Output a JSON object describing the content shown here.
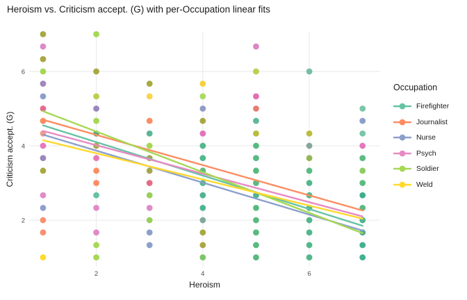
{
  "title": "Heroism vs. Criticism accept. (G) with per-Occupation linear fits",
  "axes": {
    "x_label": "Heroism",
    "y_label": "Criticism accept. (G)"
  },
  "legend": {
    "title": "Occupation",
    "items": [
      {
        "label": "Firefighter",
        "color": "#66C2A5"
      },
      {
        "label": "Journalist",
        "color": "#FC8D62"
      },
      {
        "label": "Nurse",
        "color": "#8DA0CB"
      },
      {
        "label": "Psych",
        "color": "#E78AC3"
      },
      {
        "label": "Soldier",
        "color": "#A6D854"
      },
      {
        "label": "Weld",
        "color": "#FFD92F"
      }
    ]
  },
  "chart_data": {
    "type": "scatter",
    "title": "Heroism vs. Criticism accept. (G) with per-Occupation linear fits",
    "xlabel": "Heroism",
    "ylabel": "Criticism accept. (G)",
    "xlim": [
      0.74,
      7.33
    ],
    "ylim": [
      0.75,
      7.08
    ],
    "x_ticks": [
      2,
      4,
      6
    ],
    "y_ticks": [
      2,
      4,
      6
    ],
    "grid": "major-only",
    "grid_color": "#EBEBEB",
    "tick_label_color": "#4D4D4D",
    "legend_position": "right",
    "point_radius": 4.4,
    "points": [
      [
        1,
        7.0,
        "#A9A943"
      ],
      [
        1,
        6.67,
        "#DC8BC7"
      ],
      [
        1,
        6.33,
        "#A9A943"
      ],
      [
        1,
        6.0,
        "#A6D854"
      ],
      [
        1,
        5.67,
        "#9F87BF"
      ],
      [
        1,
        5.33,
        "#8DA0CB"
      ],
      [
        1,
        5.0,
        "#E56B8C"
      ],
      [
        1,
        4.67,
        "#FC8D62"
      ],
      [
        1,
        4.33,
        "#F59C83"
      ],
      [
        1,
        4.0,
        "#E778BA"
      ],
      [
        1,
        3.67,
        "#9C86BE"
      ],
      [
        1,
        3.33,
        "#A9A943"
      ],
      [
        1,
        2.67,
        "#E08BC9"
      ],
      [
        1,
        2.33,
        "#8DA0CB"
      ],
      [
        1,
        2.0,
        "#F89071"
      ],
      [
        1,
        1.67,
        "#F89071"
      ],
      [
        1,
        1.0,
        "#FFD92F"
      ],
      [
        2,
        7.0,
        "#A6D854"
      ],
      [
        2,
        6.0,
        "#A9A943"
      ],
      [
        2,
        5.33,
        "#BCCF4E"
      ],
      [
        2,
        5.0,
        "#9C86BE"
      ],
      [
        2,
        4.67,
        "#A6D854"
      ],
      [
        2,
        4.33,
        "#4FA77E"
      ],
      [
        2,
        4.0,
        "#A9A943"
      ],
      [
        2,
        3.67,
        "#E778BA"
      ],
      [
        2,
        3.33,
        "#FC8D62"
      ],
      [
        2,
        3.0,
        "#FC8D62"
      ],
      [
        2,
        2.67,
        "#66C2A5"
      ],
      [
        2,
        2.33,
        "#E08BC9"
      ],
      [
        2,
        1.67,
        "#E08BC9"
      ],
      [
        2,
        1.33,
        "#A6D854"
      ],
      [
        2,
        1.0,
        "#A6D854"
      ],
      [
        3,
        5.67,
        "#A9A943"
      ],
      [
        3,
        5.33,
        "#F7D54D"
      ],
      [
        3,
        4.67,
        "#FC8D62"
      ],
      [
        3,
        4.33,
        "#5BB597"
      ],
      [
        3,
        4.0,
        "#A6D854"
      ],
      [
        3,
        3.67,
        "#A3A64F"
      ],
      [
        3,
        3.33,
        "#A3A64F"
      ],
      [
        3,
        3.0,
        "#E56B84"
      ],
      [
        3,
        2.67,
        "#98D05C"
      ],
      [
        3,
        2.33,
        "#E08BC9"
      ],
      [
        3,
        2.0,
        "#98D05C"
      ],
      [
        3,
        1.67,
        "#8DA0CB"
      ],
      [
        3,
        1.33,
        "#8DA0CB"
      ],
      [
        4,
        5.67,
        "#F6D144"
      ],
      [
        4,
        5.33,
        "#ABDA62"
      ],
      [
        4,
        5.0,
        "#939BC8"
      ],
      [
        4,
        4.67,
        "#A9A943"
      ],
      [
        4,
        4.33,
        "#E175BC"
      ],
      [
        4,
        4.0,
        "#52B88B"
      ],
      [
        4,
        3.67,
        "#52B88B"
      ],
      [
        4,
        3.33,
        "#5FBB7E"
      ],
      [
        4,
        3.0,
        "#52B88B"
      ],
      [
        4,
        2.67,
        "#50B491"
      ],
      [
        4,
        2.33,
        "#50B491"
      ],
      [
        4,
        2.0,
        "#7FA99E"
      ],
      [
        4,
        1.67,
        "#A9A943"
      ],
      [
        4,
        1.33,
        "#A9A943"
      ],
      [
        4,
        1.0,
        "#7CC668"
      ],
      [
        5,
        6.67,
        "#DC87C4"
      ],
      [
        5,
        6.0,
        "#BCCF4E"
      ],
      [
        5,
        5.33,
        "#E36FB2"
      ],
      [
        5,
        5.0,
        "#E97B72"
      ],
      [
        5,
        4.67,
        "#5FB999"
      ],
      [
        5,
        4.33,
        "#B9BD3C"
      ],
      [
        5,
        4.0,
        "#59BA80"
      ],
      [
        5,
        3.67,
        "#59BA80"
      ],
      [
        5,
        3.33,
        "#59BA80"
      ],
      [
        5,
        3.0,
        "#59BA80"
      ],
      [
        5,
        2.67,
        "#4FB492"
      ],
      [
        5,
        2.33,
        "#59BA80"
      ],
      [
        5,
        2.0,
        "#59BA80"
      ],
      [
        5,
        1.67,
        "#59BA80"
      ],
      [
        5,
        1.33,
        "#59BA80"
      ],
      [
        5,
        1.0,
        "#59BA80"
      ],
      [
        6,
        6.0,
        "#74BFA4"
      ],
      [
        6,
        4.33,
        "#BCBC3F"
      ],
      [
        6,
        4.0,
        "#86A79B"
      ],
      [
        6,
        3.67,
        "#95B654"
      ],
      [
        6,
        3.33,
        "#5BBB84"
      ],
      [
        6,
        3.0,
        "#52B88B"
      ],
      [
        6,
        2.67,
        "#52B88B"
      ],
      [
        6,
        2.33,
        "#52B88B"
      ],
      [
        6,
        2.0,
        "#52B88B"
      ],
      [
        6,
        1.67,
        "#52B88B"
      ],
      [
        6,
        1.33,
        "#52B88B"
      ],
      [
        6,
        1.0,
        "#52B88B"
      ],
      [
        7,
        5.0,
        "#79C6A8"
      ],
      [
        7,
        4.67,
        "#8DA0CB"
      ],
      [
        7,
        4.33,
        "#79C6A8"
      ],
      [
        7,
        4.0,
        "#E378BA"
      ],
      [
        7,
        3.67,
        "#5CBB82"
      ],
      [
        7,
        3.33,
        "#8CCD65"
      ],
      [
        7,
        3.0,
        "#5CBB82"
      ],
      [
        7,
        2.67,
        "#3FAE8C"
      ],
      [
        7,
        2.33,
        "#5CBB82"
      ],
      [
        7,
        2.0,
        "#4FB492"
      ],
      [
        7,
        1.67,
        "#52A69B"
      ],
      [
        7,
        1.33,
        "#43B091"
      ],
      [
        7,
        1.0,
        "#43B091"
      ]
    ],
    "fits": [
      {
        "name": "Firefighter",
        "color": "#66C2A5",
        "x": [
          1,
          7
        ],
        "y": [
          4.55,
          1.85
        ]
      },
      {
        "name": "Journalist",
        "color": "#FC8D62",
        "x": [
          1,
          7
        ],
        "y": [
          4.7,
          2.26
        ]
      },
      {
        "name": "Nurse",
        "color": "#8DA0CB",
        "x": [
          1,
          7
        ],
        "y": [
          4.3,
          1.72
        ]
      },
      {
        "name": "Psych",
        "color": "#E78AC3",
        "x": [
          1,
          7
        ],
        "y": [
          4.4,
          2.1
        ]
      },
      {
        "name": "Soldier",
        "color": "#A6D854",
        "x": [
          1,
          7
        ],
        "y": [
          4.93,
          1.65
        ]
      },
      {
        "name": "Weld",
        "color": "#FFD92F",
        "x": [
          1,
          7
        ],
        "y": [
          4.15,
          2.04
        ]
      }
    ]
  }
}
